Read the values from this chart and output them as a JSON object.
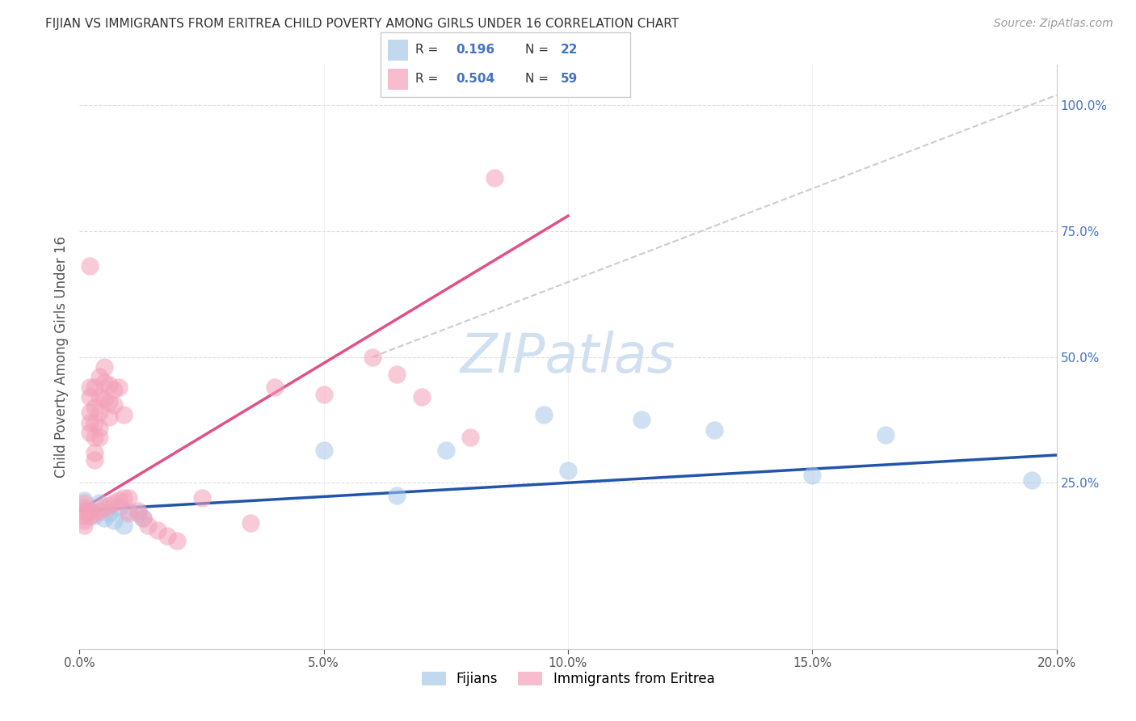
{
  "title": "FIJIAN VS IMMIGRANTS FROM ERITREA CHILD POVERTY AMONG GIRLS UNDER 16 CORRELATION CHART",
  "source": "Source: ZipAtlas.com",
  "ylabel": "Child Poverty Among Girls Under 16",
  "x_tick_labels": [
    "0.0%",
    "5.0%",
    "10.0%",
    "15.0%",
    "20.0%"
  ],
  "x_ticks": [
    0.0,
    0.05,
    0.1,
    0.15,
    0.2
  ],
  "y_tick_labels_right": [
    "25.0%",
    "50.0%",
    "75.0%",
    "100.0%"
  ],
  "y_ticks_right": [
    0.25,
    0.5,
    0.75,
    1.0
  ],
  "xlim": [
    0.0,
    0.2
  ],
  "ylim": [
    -0.08,
    1.08
  ],
  "legend_R_blue": "0.196",
  "legend_N_blue": "22",
  "legend_R_pink": "0.504",
  "legend_N_pink": "59",
  "legend_label_blue": "Fijians",
  "legend_label_pink": "Immigrants from Eritrea",
  "blue_color": "#a8c8e8",
  "pink_color": "#f4a0b8",
  "blue_line_color": "#2255aa",
  "pink_line_color": "#e0508a",
  "ref_line_color": "#cccccc",
  "title_color": "#333333",
  "source_color": "#999999",
  "right_axis_color": "#4472c4",
  "watermark_color": "#d0e0f0",
  "watermark": "ZIPatlas",
  "blue_line_x": [
    0.0,
    0.2
  ],
  "blue_line_y": [
    0.195,
    0.305
  ],
  "pink_line_x": [
    0.0,
    0.1
  ],
  "pink_line_y": [
    0.195,
    0.78
  ],
  "ref_line_x": [
    0.06,
    0.2
  ],
  "ref_line_y": [
    0.5,
    1.02
  ],
  "fijians_x": [
    0.001,
    0.002,
    0.003,
    0.004,
    0.005,
    0.006,
    0.007,
    0.008,
    0.009,
    0.01,
    0.012,
    0.013,
    0.05,
    0.065,
    0.075,
    0.095,
    0.1,
    0.115,
    0.13,
    0.15,
    0.165,
    0.195
  ],
  "fijians_y": [
    0.215,
    0.195,
    0.185,
    0.21,
    0.18,
    0.19,
    0.175,
    0.2,
    0.165,
    0.195,
    0.19,
    0.18,
    0.315,
    0.225,
    0.315,
    0.385,
    0.275,
    0.375,
    0.355,
    0.265,
    0.345,
    0.255
  ],
  "eritrea_x": [
    0.001,
    0.001,
    0.001,
    0.001,
    0.001,
    0.001,
    0.002,
    0.002,
    0.002,
    0.002,
    0.002,
    0.002,
    0.002,
    0.002,
    0.003,
    0.003,
    0.003,
    0.003,
    0.003,
    0.003,
    0.003,
    0.004,
    0.004,
    0.004,
    0.004,
    0.004,
    0.004,
    0.005,
    0.005,
    0.005,
    0.005,
    0.006,
    0.006,
    0.006,
    0.006,
    0.007,
    0.007,
    0.007,
    0.008,
    0.008,
    0.009,
    0.009,
    0.01,
    0.01,
    0.012,
    0.013,
    0.014,
    0.016,
    0.018,
    0.02,
    0.025,
    0.035,
    0.04,
    0.05,
    0.06,
    0.065,
    0.07,
    0.08,
    0.085
  ],
  "eritrea_y": [
    0.21,
    0.2,
    0.195,
    0.185,
    0.175,
    0.165,
    0.68,
    0.44,
    0.42,
    0.39,
    0.37,
    0.35,
    0.195,
    0.185,
    0.44,
    0.4,
    0.37,
    0.34,
    0.31,
    0.295,
    0.19,
    0.46,
    0.42,
    0.39,
    0.36,
    0.34,
    0.195,
    0.48,
    0.45,
    0.415,
    0.2,
    0.445,
    0.41,
    0.38,
    0.205,
    0.435,
    0.405,
    0.21,
    0.44,
    0.215,
    0.385,
    0.22,
    0.22,
    0.19,
    0.195,
    0.18,
    0.165,
    0.155,
    0.145,
    0.135,
    0.22,
    0.17,
    0.44,
    0.425,
    0.5,
    0.465,
    0.42,
    0.34,
    0.855
  ]
}
